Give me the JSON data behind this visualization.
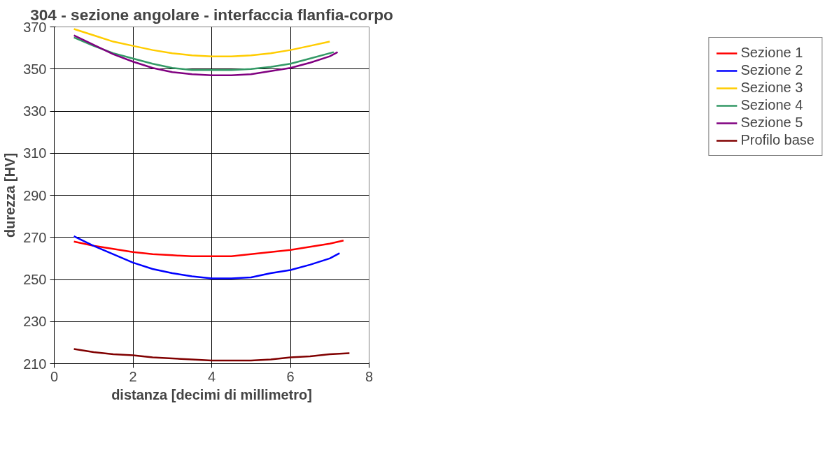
{
  "chart_data": {
    "type": "line",
    "title": "304 - sezione angolare - interfaccia flanfia-corpo",
    "xlabel": "distanza [decimi di millimetro]",
    "ylabel": "durezza [HV]",
    "x": [
      0.5,
      1,
      1.5,
      2,
      2.5,
      3,
      3.5,
      4,
      4.5,
      5,
      5.5,
      6,
      6.5,
      7,
      7.35
    ],
    "xlim": [
      0,
      8
    ],
    "xticks": [
      0,
      2,
      4,
      6,
      8
    ],
    "ylim": [
      210,
      370
    ],
    "yticks": [
      210,
      230,
      250,
      270,
      290,
      310,
      330,
      350,
      370
    ],
    "grid": true,
    "legend": "right",
    "marker": "none",
    "line_style": "solid",
    "series": [
      {
        "name": "Sezione 1",
        "color": "#ff0000",
        "values": [
          268,
          266,
          264.5,
          263,
          262,
          261.5,
          261,
          261,
          261,
          262,
          263,
          264,
          265.5,
          267,
          268.5
        ]
      },
      {
        "name": "Sezione 2",
        "color": "#0000ff",
        "x": [
          0.5,
          1,
          1.5,
          2,
          2.5,
          3,
          3.5,
          4,
          4.5,
          5,
          5.5,
          6,
          6.5,
          7,
          7.25
        ],
        "values": [
          270.5,
          266,
          262,
          258,
          255,
          253,
          251.5,
          250.5,
          250.5,
          251,
          253,
          254.5,
          257,
          260,
          262.5
        ]
      },
      {
        "name": "Sezione 3",
        "color": "#ffcc00",
        "x": [
          0.5,
          1,
          1.5,
          2,
          2.5,
          3,
          3.5,
          4,
          4.5,
          5,
          5.5,
          6,
          6.5,
          7
        ],
        "values": [
          369,
          366,
          363,
          361,
          359,
          357.5,
          356.5,
          356,
          356,
          356.5,
          357.5,
          359,
          361,
          363
        ]
      },
      {
        "name": "Sezione 4",
        "color": "#339966",
        "x": [
          0.5,
          1,
          1.5,
          2,
          2.5,
          3,
          3.5,
          4,
          4.5,
          5,
          5.5,
          6,
          6.5,
          7,
          7.1
        ],
        "values": [
          365,
          361,
          357.5,
          355,
          352.5,
          350.5,
          349.5,
          349.5,
          349.5,
          350,
          351,
          352.5,
          355,
          357.5,
          358
        ]
      },
      {
        "name": "Sezione 5",
        "color": "#800080",
        "x": [
          0.5,
          1,
          1.5,
          2,
          2.5,
          3,
          3.5,
          4,
          4.5,
          5,
          5.5,
          6,
          6.5,
          7,
          7.2
        ],
        "values": [
          366,
          361.5,
          357,
          353.5,
          350.5,
          348.5,
          347.5,
          347,
          347,
          347.5,
          349,
          350.5,
          353,
          356,
          358
        ]
      },
      {
        "name": "Profilo base",
        "color": "#800000",
        "x": [
          0.5,
          1,
          1.5,
          2,
          2.5,
          3,
          3.5,
          4,
          4.5,
          5,
          5.5,
          6,
          6.5,
          7,
          7.5
        ],
        "values": [
          217,
          215.5,
          214.5,
          214,
          213,
          212.5,
          212,
          211.5,
          211.5,
          211.5,
          212,
          213,
          213.5,
          214.5,
          215
        ]
      }
    ]
  }
}
